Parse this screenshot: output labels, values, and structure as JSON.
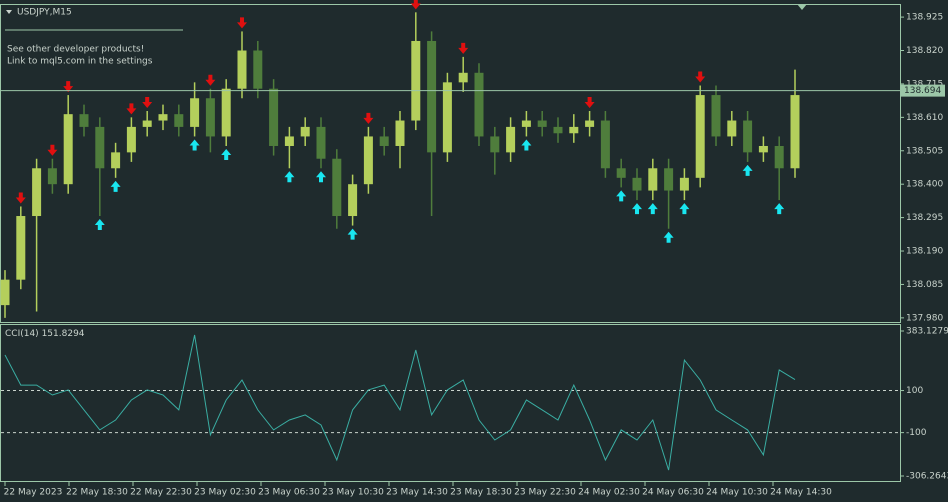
{
  "chart_data": {
    "type": "candlestick",
    "symbol": "USDJPY,M15",
    "notes": [
      "See other developer products!",
      "Link to mql5.com in the settings"
    ],
    "current_price": 138.694,
    "ylim": [
      137.967,
      138.963
    ],
    "yticks": [
      {
        "value": 137.98,
        "label": "137.980"
      },
      138.085,
      {
        "value": 138.19,
        "label": "138.190"
      },
      138.295,
      {
        "value": 138.4,
        "label": "138.400"
      },
      138.505,
      {
        "value": 138.61,
        "label": "138.610"
      },
      138.715,
      {
        "value": 138.82,
        "label": "138.820"
      },
      138.925
    ],
    "categories": [
      "22 May 2023",
      "22 May 18:30",
      "22 May 22:30",
      "23 May 02:30",
      "23 May 06:30",
      "23 May 10:30",
      "23 May 14:30",
      "23 May 18:30",
      "23 May 22:30",
      "24 May 02:30",
      "24 May 06:30",
      "24 May 10:30",
      "24 May 14:30"
    ],
    "up_color": "#b4cf5c",
    "down_color": "#4f7d3c",
    "open": [
      138.02,
      138.1,
      138.3,
      138.45,
      138.4,
      138.62,
      138.58,
      138.45,
      138.5,
      138.58,
      138.6,
      138.62,
      138.58,
      138.67,
      138.55,
      138.7,
      138.82,
      138.7,
      138.52,
      138.55,
      138.58,
      138.48,
      138.3,
      138.4,
      138.55,
      138.52,
      138.6,
      138.85,
      138.5,
      138.72,
      138.75,
      138.55,
      138.5,
      138.58,
      138.6,
      138.58,
      138.56,
      138.58,
      138.6,
      138.45,
      138.42,
      138.38,
      138.45,
      138.38,
      138.42,
      138.68,
      138.55,
      138.6,
      138.5,
      138.52,
      138.45
    ],
    "high": [
      138.13,
      138.33,
      138.48,
      138.48,
      138.68,
      138.65,
      138.61,
      138.53,
      138.61,
      138.63,
      138.65,
      138.65,
      138.72,
      138.7,
      138.73,
      138.88,
      138.85,
      138.73,
      138.58,
      138.61,
      138.61,
      138.51,
      138.43,
      138.58,
      138.58,
      138.63,
      138.94,
      138.88,
      138.75,
      138.8,
      138.78,
      138.58,
      138.61,
      138.63,
      138.63,
      138.61,
      138.62,
      138.63,
      138.63,
      138.48,
      138.45,
      138.48,
      138.48,
      138.45,
      138.71,
      138.71,
      138.63,
      138.63,
      138.55,
      138.55,
      138.76
    ],
    "low": [
      137.98,
      138.07,
      138.0,
      138.37,
      138.37,
      138.55,
      138.3,
      138.42,
      138.47,
      138.55,
      138.57,
      138.55,
      138.55,
      138.5,
      138.52,
      138.67,
      138.67,
      138.49,
      138.45,
      138.52,
      138.45,
      138.26,
      138.27,
      138.37,
      138.49,
      138.45,
      138.57,
      138.3,
      138.47,
      138.69,
      138.52,
      138.43,
      138.47,
      138.55,
      138.55,
      138.53,
      138.53,
      138.55,
      138.42,
      138.39,
      138.35,
      138.35,
      138.26,
      138.35,
      138.39,
      138.52,
      138.52,
      138.47,
      138.47,
      138.35,
      138.42
    ],
    "close": [
      138.1,
      138.3,
      138.45,
      138.4,
      138.62,
      138.58,
      138.45,
      138.5,
      138.58,
      138.6,
      138.62,
      138.58,
      138.67,
      138.55,
      138.7,
      138.82,
      138.7,
      138.52,
      138.55,
      138.58,
      138.48,
      138.3,
      138.4,
      138.55,
      138.52,
      138.6,
      138.85,
      138.5,
      138.72,
      138.75,
      138.55,
      138.5,
      138.58,
      138.6,
      138.58,
      138.56,
      138.58,
      138.6,
      138.45,
      138.42,
      138.38,
      138.45,
      138.38,
      138.42,
      138.68,
      138.55,
      138.6,
      138.5,
      138.52,
      138.45,
      138.68
    ],
    "sell_signals": [
      1,
      3,
      4,
      8,
      9,
      13,
      15,
      23,
      26,
      29,
      37,
      44
    ],
    "buy_signals": [
      6,
      7,
      12,
      14,
      18,
      20,
      22,
      33,
      39,
      40,
      41,
      42,
      43,
      47,
      49
    ],
    "sell_color": "#e01010",
    "buy_color": "#19e6f0",
    "indicator": {
      "type": "line",
      "name": "CCI(14)",
      "current": 151.8294,
      "color": "#3aaea3",
      "ylim": [
        -306.2643,
        383.1279
      ],
      "yticks": [
        -306.2643,
        -100,
        100,
        383.1279
      ],
      "levels": [
        100,
        -100
      ],
      "values": [
        269,
        126,
        126,
        79,
        103,
        8,
        -87,
        -40,
        55,
        103,
        79,
        8,
        364,
        -111,
        55,
        150,
        8,
        -87,
        -40,
        -16,
        -64,
        -230,
        8,
        103,
        126,
        8,
        293,
        -16,
        103,
        150,
        -40,
        -135,
        -87,
        55,
        8,
        -40,
        126,
        -40,
        -230,
        -87,
        -135,
        -40,
        -278,
        245,
        150,
        8,
        -40,
        -87,
        -206,
        198,
        151.8294
      ]
    }
  }
}
